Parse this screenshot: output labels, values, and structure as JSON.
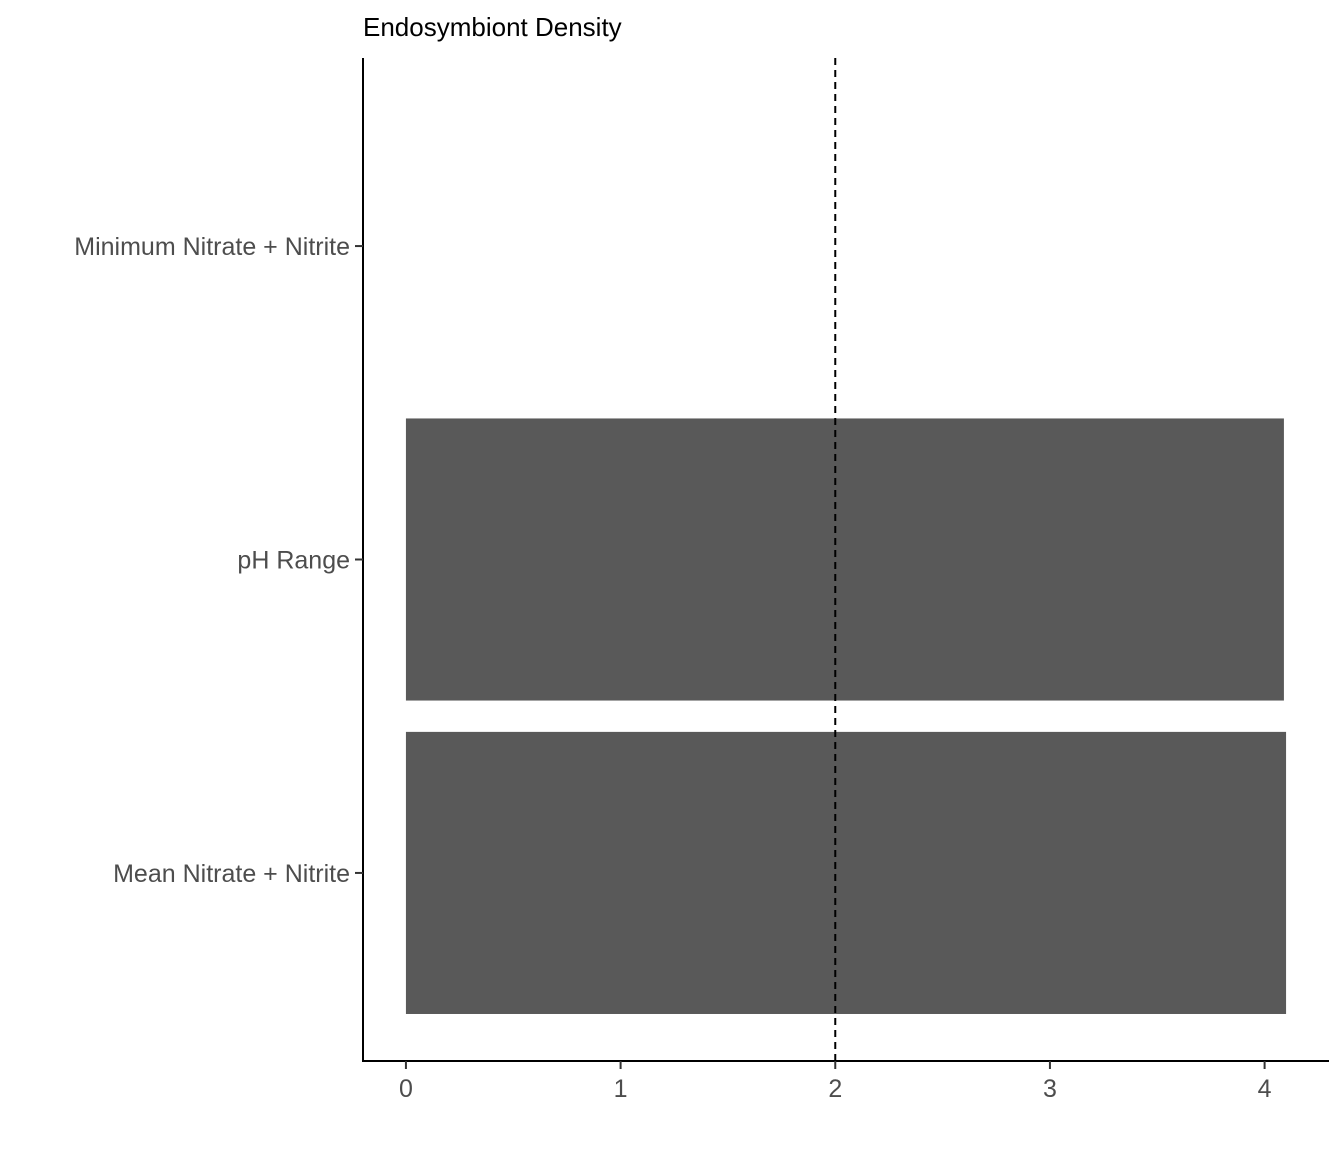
{
  "chart_data": {
    "type": "bar",
    "orientation": "horizontal",
    "title": "Endosymbiont Density",
    "xlabel": "",
    "ylabel": "",
    "categories": [
      "Mean Nitrate + Nitrite",
      "pH Range",
      "Minimum Nitrate + Nitrite"
    ],
    "values": [
      4.1,
      4.09,
      0
    ],
    "xlim": [
      -0.2,
      4.3
    ],
    "x_ticks": [
      0,
      1,
      2,
      3,
      4
    ],
    "reference_line": {
      "x": 2,
      "style": "dashed",
      "color": "#000000"
    },
    "bar_color": "#595959",
    "grid": false,
    "legend": "none"
  }
}
